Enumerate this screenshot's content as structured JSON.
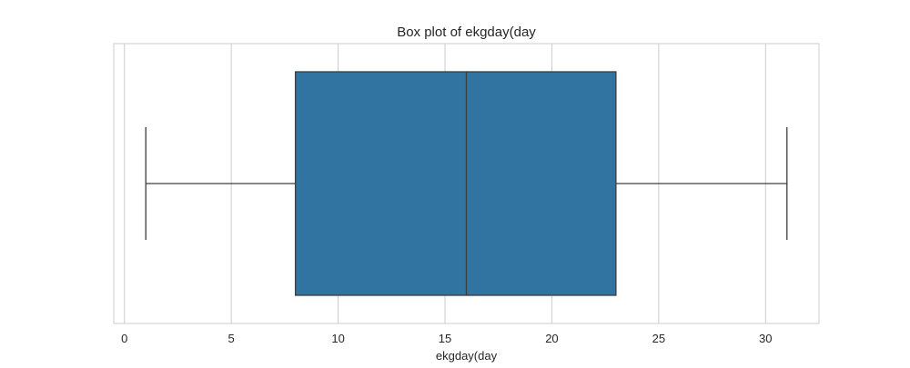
{
  "chart_data": {
    "type": "box",
    "title": "Box plot of ekgday(day",
    "xlabel": "ekgday(day",
    "ylabel": "",
    "orientation": "horizontal",
    "xlim": [
      -0.5,
      32.5
    ],
    "xticks": [
      0,
      5,
      10,
      15,
      20,
      25,
      30
    ],
    "grid": true,
    "box": {
      "min": 1,
      "q1": 8,
      "median": 16,
      "q3": 23,
      "max": 31
    },
    "colors": {
      "box_fill": "#3274a1",
      "line": "#3d3d3d",
      "grid": "#cccccc",
      "axes_edge": "#cccccc"
    }
  }
}
